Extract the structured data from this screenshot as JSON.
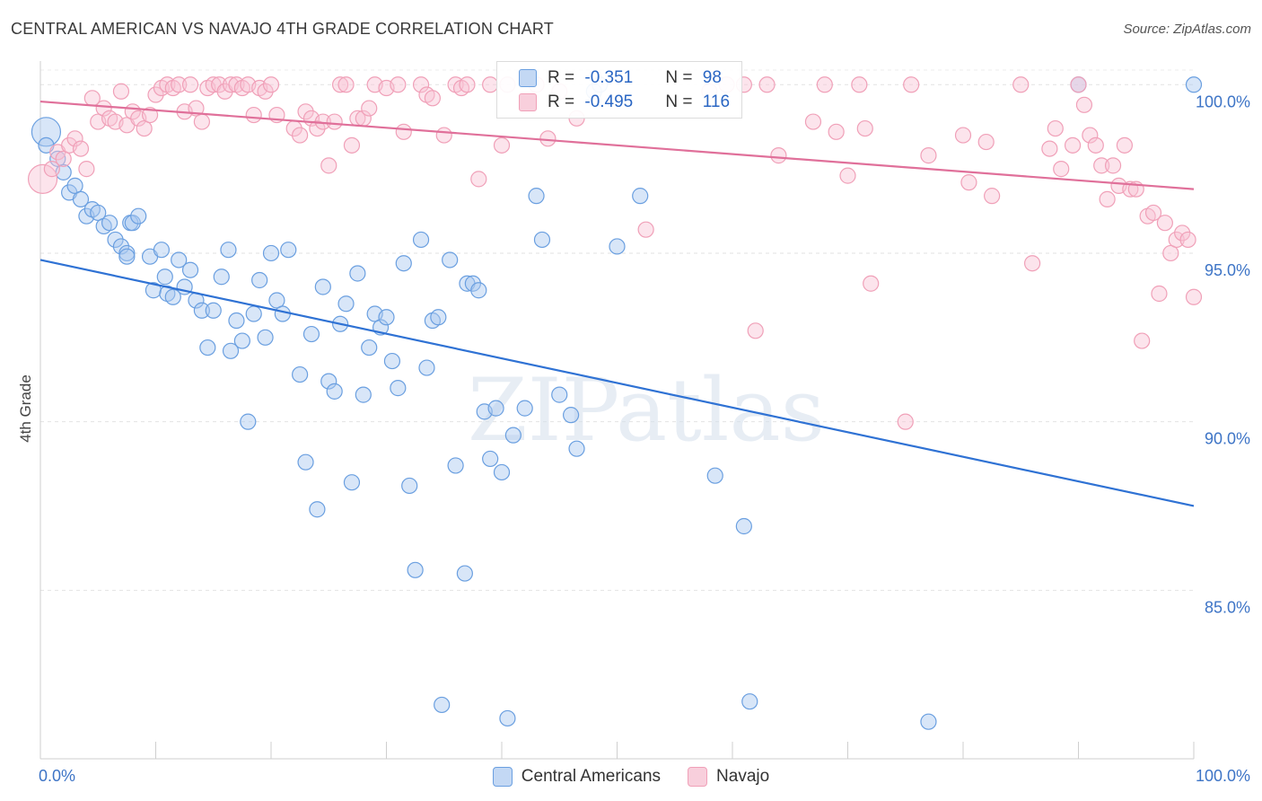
{
  "chart_data": {
    "type": "scatter",
    "title": "CENTRAL AMERICAN VS NAVAJO 4TH GRADE CORRELATION CHART",
    "source": "Source: ZipAtlas.com",
    "ylabel": "4th Grade",
    "xlim": [
      0,
      100
    ],
    "ylim": [
      80.0,
      100.7
    ],
    "x_tick_labels": [
      "0.0%",
      "100.0%"
    ],
    "y_ticks": [
      {
        "value": 100.0,
        "label": "100.0%"
      },
      {
        "value": 95.0,
        "label": "95.0%"
      },
      {
        "value": 90.0,
        "label": "90.0%"
      },
      {
        "value": 85.0,
        "label": "85.0%"
      }
    ],
    "grid": true,
    "watermark": "ZIPatlas",
    "series": [
      {
        "name": "Central Americans",
        "color": "#6a9fe0",
        "fill": "#a8c8f0",
        "line_color": "#2f72d4",
        "stats": {
          "r_label": "R = ",
          "r": "-0.351",
          "n_label": "N = ",
          "n": "98"
        },
        "trend": [
          [
            0,
            94.8
          ],
          [
            100,
            87.5
          ]
        ],
        "points": [
          [
            0.5,
            98.6
          ],
          [
            0.5,
            98.2
          ],
          [
            1.5,
            97.8
          ],
          [
            2,
            97.4
          ],
          [
            2.5,
            96.8
          ],
          [
            3,
            97.0
          ],
          [
            3.5,
            96.6
          ],
          [
            4,
            96.1
          ],
          [
            4.5,
            96.3
          ],
          [
            5,
            96.2
          ],
          [
            5.5,
            95.8
          ],
          [
            6,
            95.9
          ],
          [
            6.5,
            95.4
          ],
          [
            7,
            95.2
          ],
          [
            7.5,
            95.0
          ],
          [
            7.5,
            94.9
          ],
          [
            7.8,
            95.9
          ],
          [
            8,
            95.9
          ],
          [
            8.5,
            96.1
          ],
          [
            9.5,
            94.9
          ],
          [
            9.8,
            93.9
          ],
          [
            10.5,
            95.1
          ],
          [
            10.8,
            94.3
          ],
          [
            11,
            93.8
          ],
          [
            11.5,
            93.7
          ],
          [
            12,
            94.8
          ],
          [
            12.5,
            94.0
          ],
          [
            13,
            94.5
          ],
          [
            13.5,
            93.6
          ],
          [
            14,
            93.3
          ],
          [
            14.5,
            92.2
          ],
          [
            15,
            93.3
          ],
          [
            15.7,
            94.3
          ],
          [
            16.3,
            95.1
          ],
          [
            16.5,
            92.1
          ],
          [
            17,
            93.0
          ],
          [
            17.5,
            92.4
          ],
          [
            18,
            90.0
          ],
          [
            18.5,
            93.2
          ],
          [
            19,
            94.2
          ],
          [
            19.5,
            92.5
          ],
          [
            20,
            95.0
          ],
          [
            20.5,
            93.6
          ],
          [
            21,
            93.2
          ],
          [
            21.5,
            95.1
          ],
          [
            22.5,
            91.4
          ],
          [
            23,
            88.8
          ],
          [
            23.5,
            92.6
          ],
          [
            24,
            87.4
          ],
          [
            24.5,
            94.0
          ],
          [
            25,
            91.2
          ],
          [
            25.5,
            90.9
          ],
          [
            26,
            92.9
          ],
          [
            26.5,
            93.5
          ],
          [
            27,
            88.2
          ],
          [
            27.5,
            94.4
          ],
          [
            28,
            90.8
          ],
          [
            28.5,
            92.2
          ],
          [
            29,
            93.2
          ],
          [
            29.5,
            92.8
          ],
          [
            30,
            93.1
          ],
          [
            30.5,
            91.8
          ],
          [
            31,
            91.0
          ],
          [
            31.5,
            94.7
          ],
          [
            32,
            88.1
          ],
          [
            32.5,
            85.6
          ],
          [
            33,
            95.4
          ],
          [
            33.5,
            91.6
          ],
          [
            34,
            93.0
          ],
          [
            34.5,
            93.1
          ],
          [
            34.8,
            81.6
          ],
          [
            35.5,
            94.8
          ],
          [
            36,
            88.7
          ],
          [
            36.8,
            85.5
          ],
          [
            37,
            94.1
          ],
          [
            37.5,
            94.1
          ],
          [
            38,
            93.9
          ],
          [
            38.5,
            90.3
          ],
          [
            39,
            88.9
          ],
          [
            39.5,
            90.4
          ],
          [
            40,
            88.5
          ],
          [
            40.5,
            81.2
          ],
          [
            41,
            89.6
          ],
          [
            42,
            90.4
          ],
          [
            43,
            96.7
          ],
          [
            43.5,
            95.4
          ],
          [
            45,
            90.8
          ],
          [
            46,
            90.2
          ],
          [
            46.5,
            89.2
          ],
          [
            48,
            99.8
          ],
          [
            48.5,
            100.0
          ],
          [
            50,
            95.2
          ],
          [
            52,
            96.7
          ],
          [
            58.5,
            88.4
          ],
          [
            61,
            86.9
          ],
          [
            61.5,
            81.7
          ],
          [
            77,
            81.1
          ],
          [
            90,
            100.0
          ],
          [
            100,
            100.0
          ]
        ]
      },
      {
        "name": "Navajo",
        "color": "#f0a0b8",
        "fill": "#f8c4d4",
        "line_color": "#e0709a",
        "stats": {
          "r_label": "R = ",
          "r": "-0.495",
          "n_label": "N = ",
          "n": "116"
        },
        "trend": [
          [
            0,
            99.5
          ],
          [
            100,
            96.9
          ]
        ],
        "points": [
          [
            0.2,
            97.2
          ],
          [
            1,
            97.5
          ],
          [
            1.5,
            98.0
          ],
          [
            2,
            97.8
          ],
          [
            2.5,
            98.2
          ],
          [
            3,
            98.4
          ],
          [
            3.5,
            98.1
          ],
          [
            4,
            97.5
          ],
          [
            4.5,
            99.6
          ],
          [
            5,
            98.9
          ],
          [
            5.5,
            99.3
          ],
          [
            6,
            99.0
          ],
          [
            6.5,
            98.9
          ],
          [
            7,
            99.8
          ],
          [
            7.5,
            98.8
          ],
          [
            8,
            99.2
          ],
          [
            8.5,
            99.0
          ],
          [
            9,
            98.7
          ],
          [
            9.5,
            99.1
          ],
          [
            10,
            99.7
          ],
          [
            10.5,
            99.9
          ],
          [
            11,
            100.0
          ],
          [
            11.5,
            99.9
          ],
          [
            12,
            100.0
          ],
          [
            12.5,
            99.2
          ],
          [
            13,
            100.0
          ],
          [
            13.5,
            99.3
          ],
          [
            14,
            98.9
          ],
          [
            14.5,
            99.9
          ],
          [
            15,
            100.0
          ],
          [
            15.5,
            100.0
          ],
          [
            16,
            99.8
          ],
          [
            16.5,
            100.0
          ],
          [
            17,
            100.0
          ],
          [
            17.5,
            99.9
          ],
          [
            18,
            100.0
          ],
          [
            18.5,
            99.1
          ],
          [
            19,
            99.9
          ],
          [
            19.5,
            99.8
          ],
          [
            20,
            100.0
          ],
          [
            20.5,
            99.1
          ],
          [
            22,
            98.7
          ],
          [
            22.5,
            98.5
          ],
          [
            23,
            99.2
          ],
          [
            23.5,
            99.0
          ],
          [
            24,
            98.7
          ],
          [
            24.5,
            98.9
          ],
          [
            25,
            97.6
          ],
          [
            25.5,
            98.9
          ],
          [
            26,
            100.0
          ],
          [
            26.5,
            100.0
          ],
          [
            27,
            98.2
          ],
          [
            27.5,
            99.0
          ],
          [
            28,
            99.0
          ],
          [
            28.5,
            99.3
          ],
          [
            29,
            100.0
          ],
          [
            30,
            99.9
          ],
          [
            31,
            100.0
          ],
          [
            31.5,
            98.6
          ],
          [
            33,
            100.0
          ],
          [
            33.5,
            99.7
          ],
          [
            34,
            99.6
          ],
          [
            35,
            98.5
          ],
          [
            36,
            100.0
          ],
          [
            36.5,
            99.9
          ],
          [
            37,
            100.0
          ],
          [
            38,
            97.2
          ],
          [
            39,
            100.0
          ],
          [
            40,
            98.2
          ],
          [
            40.5,
            100.0
          ],
          [
            43,
            100.0
          ],
          [
            44,
            98.4
          ],
          [
            45,
            99.8
          ],
          [
            46.5,
            99.0
          ],
          [
            52.5,
            95.7
          ],
          [
            58,
            99.8
          ],
          [
            59.5,
            100.0
          ],
          [
            61,
            100.0
          ],
          [
            62,
            92.7
          ],
          [
            63,
            100.0
          ],
          [
            64,
            97.9
          ],
          [
            67,
            98.9
          ],
          [
            68,
            100.0
          ],
          [
            69,
            98.6
          ],
          [
            70,
            97.3
          ],
          [
            71,
            100.0
          ],
          [
            71.5,
            98.7
          ],
          [
            72,
            94.1
          ],
          [
            75,
            90.0
          ],
          [
            75.5,
            100.0
          ],
          [
            77,
            97.9
          ],
          [
            80,
            98.5
          ],
          [
            80.5,
            97.1
          ],
          [
            82,
            98.3
          ],
          [
            82.5,
            96.7
          ],
          [
            85,
            100.0
          ],
          [
            86,
            94.7
          ],
          [
            87.5,
            98.1
          ],
          [
            88,
            98.7
          ],
          [
            88.5,
            97.5
          ],
          [
            89.5,
            98.2
          ],
          [
            90,
            100.0
          ],
          [
            90.5,
            99.4
          ],
          [
            91,
            98.5
          ],
          [
            91.5,
            98.2
          ],
          [
            92,
            97.6
          ],
          [
            92.5,
            96.6
          ],
          [
            93,
            97.6
          ],
          [
            93.5,
            97.0
          ],
          [
            94,
            98.2
          ],
          [
            94.5,
            96.9
          ],
          [
            95,
            96.9
          ],
          [
            95.5,
            92.4
          ],
          [
            96,
            96.1
          ],
          [
            96.5,
            96.2
          ],
          [
            97,
            93.8
          ],
          [
            97.5,
            95.9
          ],
          [
            98,
            95.0
          ],
          [
            98.5,
            95.4
          ],
          [
            99,
            95.6
          ],
          [
            99.5,
            95.4
          ],
          [
            100,
            93.7
          ]
        ]
      }
    ]
  }
}
